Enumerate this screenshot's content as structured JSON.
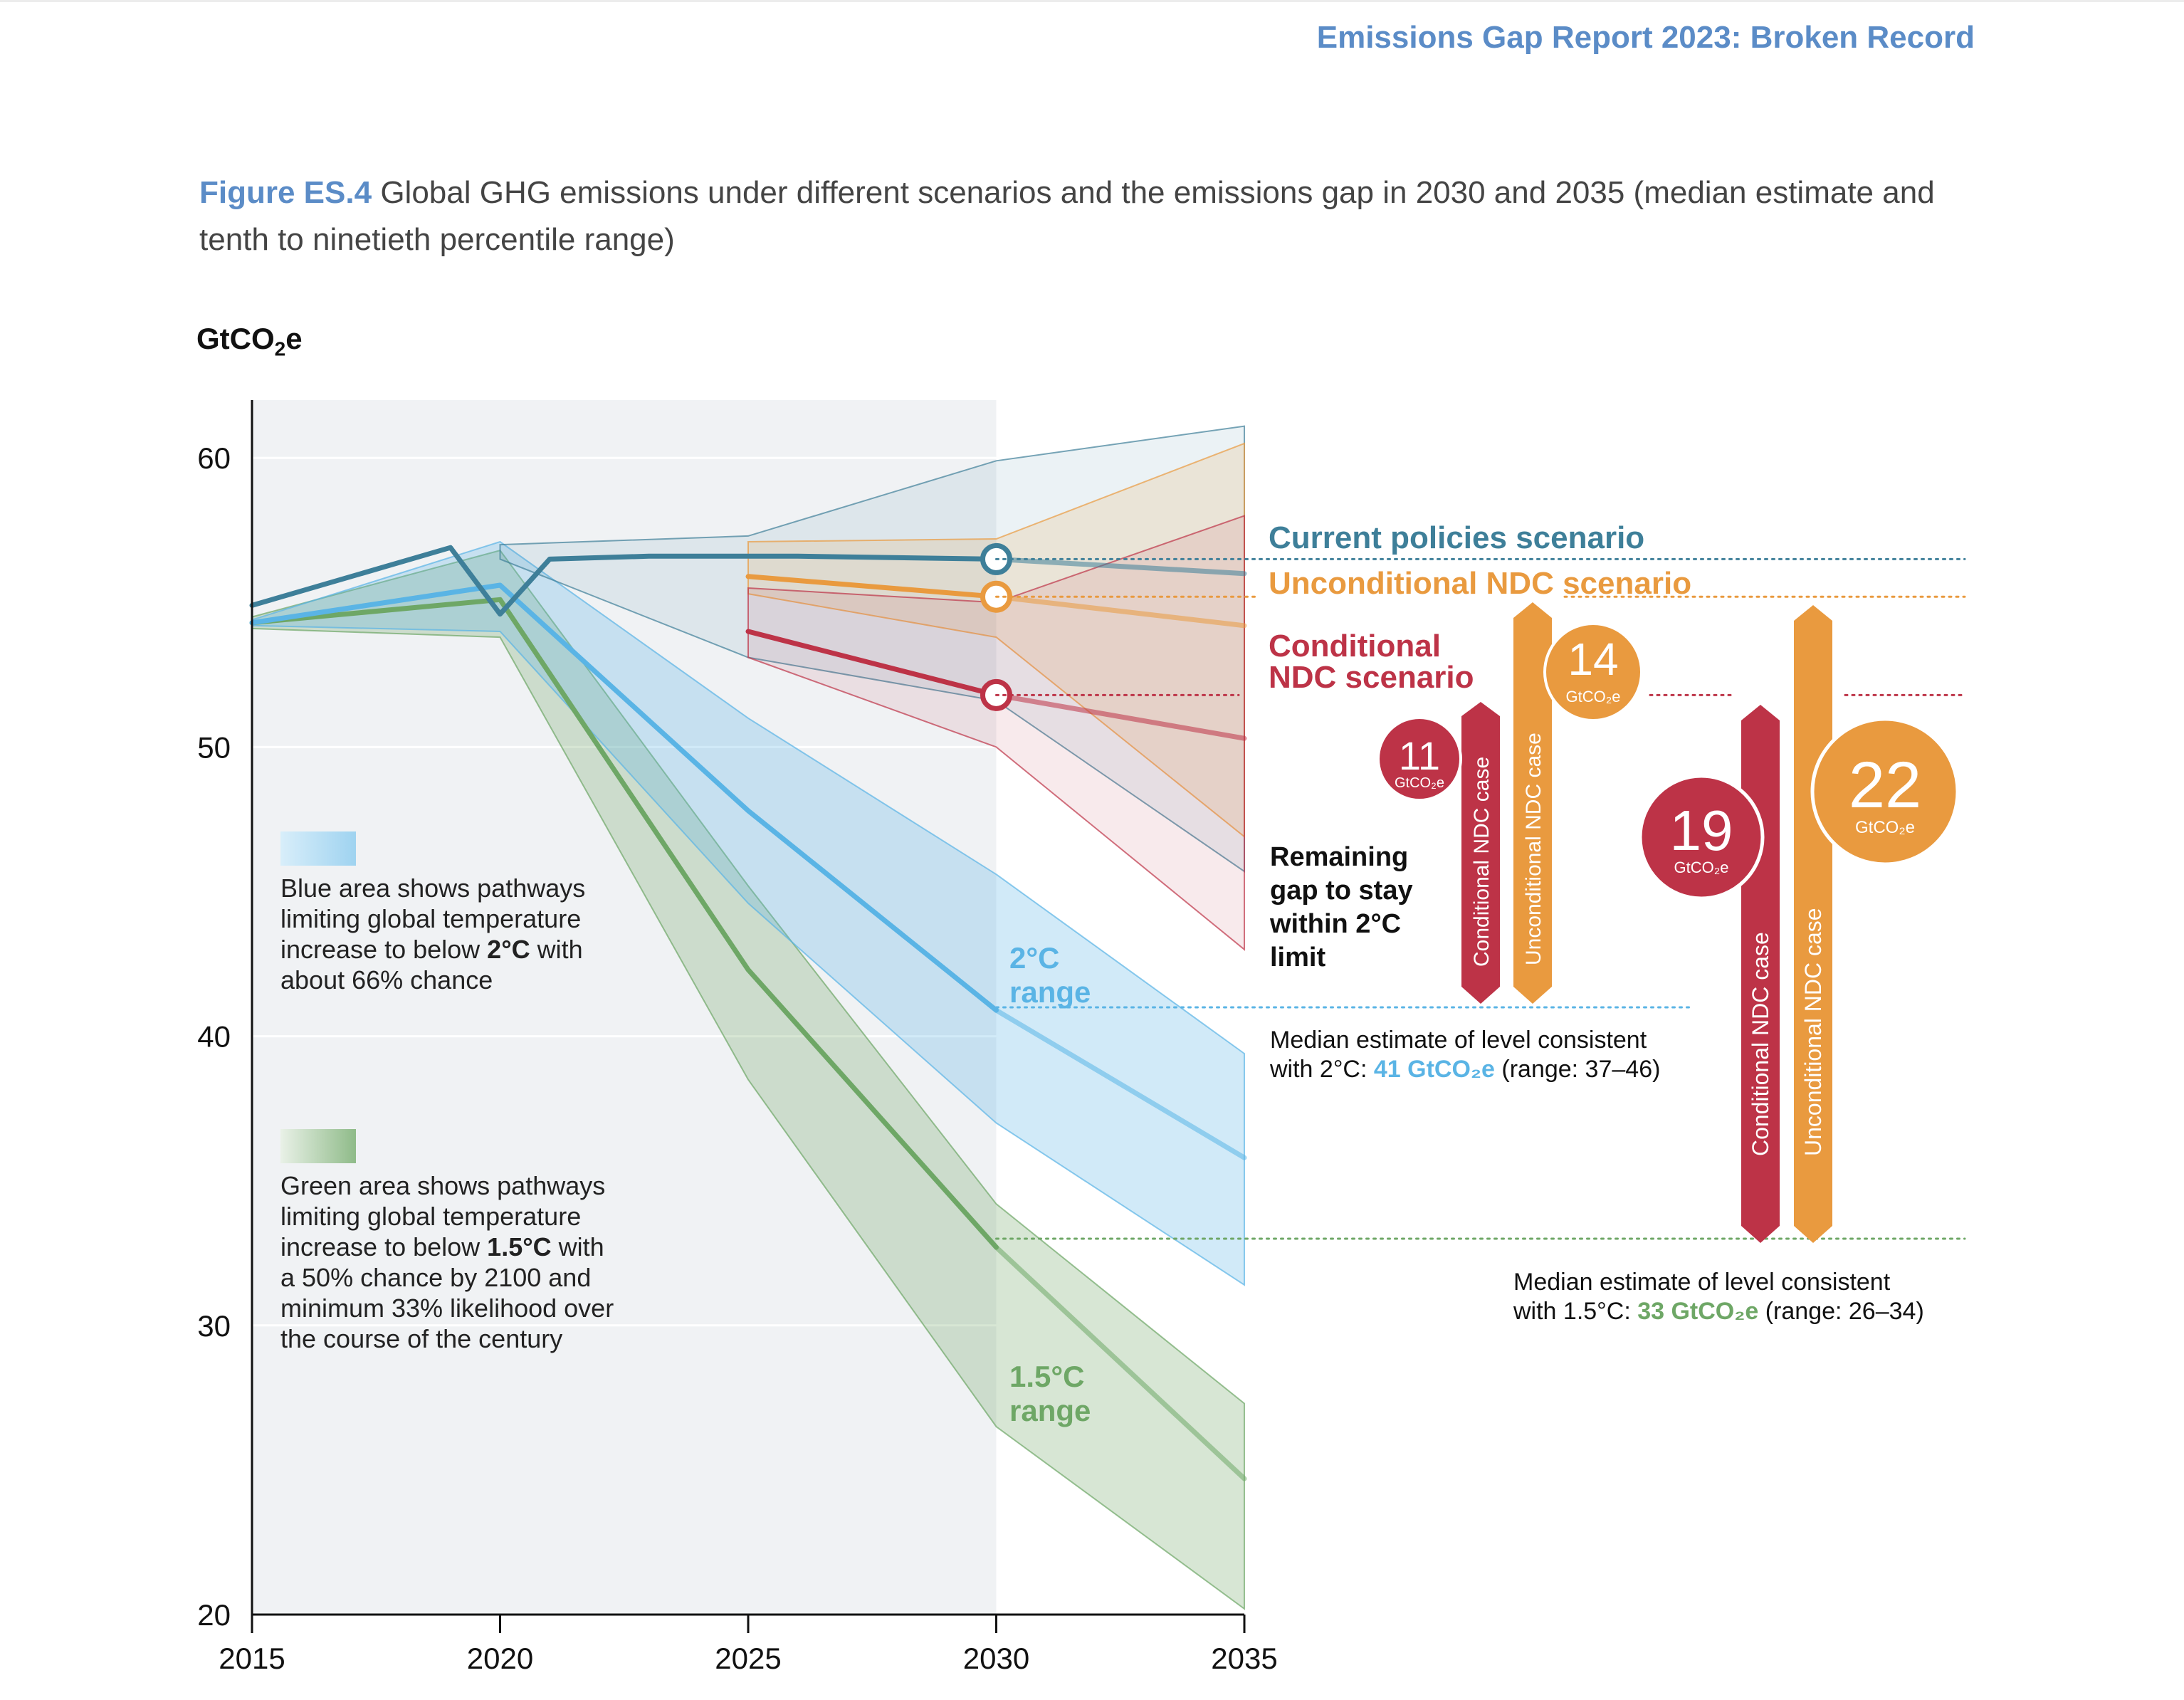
{
  "header": {
    "report_title": "Emissions Gap Report 2023: Broken Record"
  },
  "caption": {
    "figure_label": "Figure ES.4",
    "text": "Global GHG emissions under different scenarios and the emissions gap in 2030 and 2035 (median estimate and tenth to ninetieth percentile range)"
  },
  "chart_data": {
    "type": "line",
    "ylabel": "GtCO2e",
    "xlim": [
      2015,
      2035
    ],
    "ylim": [
      20,
      62
    ],
    "x_ticks": [
      2015,
      2020,
      2025,
      2030,
      2035
    ],
    "y_ticks": [
      20,
      30,
      40,
      50,
      60
    ],
    "grid": "horizontal",
    "historical_shading_until": 2030,
    "colors": {
      "current_policies": "#3e7f99",
      "unconditional_ndc": "#e99a3f",
      "conditional_ndc": "#bd3347",
      "two_c": "#5ab4e5",
      "one_five_c": "#6ea766"
    },
    "series": [
      {
        "name": "Current policies scenario",
        "x": [
          2015,
          2019,
          2020,
          2021,
          2023,
          2026,
          2030,
          2035
        ],
        "median": [
          54.9,
          56.9,
          54.6,
          56.5,
          56.6,
          56.6,
          56.5,
          56.0
        ],
        "band_x": [
          2020,
          2025,
          2030,
          2035
        ],
        "band_high": [
          57.0,
          57.3,
          59.9,
          61.1
        ],
        "band_low": [
          56.5,
          53.1,
          51.6,
          45.7
        ]
      },
      {
        "name": "Unconditional NDC scenario",
        "x": [
          2025,
          2030,
          2035
        ],
        "median": [
          55.9,
          55.2,
          54.2
        ],
        "band_high": [
          57.1,
          57.2,
          60.5
        ],
        "band_low": [
          55.3,
          53.8,
          46.9
        ]
      },
      {
        "name": "Conditional NDC scenario",
        "x": [
          2025,
          2030,
          2035
        ],
        "median": [
          54.0,
          51.8,
          50.3
        ],
        "band_high": [
          55.5,
          55.0,
          58.0
        ],
        "band_low": [
          53.1,
          50.0,
          43.0
        ]
      },
      {
        "name": "2°C range",
        "x": [
          2015,
          2020,
          2025,
          2030,
          2035
        ],
        "median": [
          54.3,
          55.6,
          47.8,
          40.9,
          35.8
        ],
        "band_high": [
          54.4,
          57.1,
          51.0,
          45.6,
          39.4
        ],
        "band_low": [
          54.2,
          54.0,
          44.6,
          37.0,
          31.4
        ]
      },
      {
        "name": "1.5°C range",
        "x": [
          2015,
          2020,
          2025,
          2030,
          2035
        ],
        "median": [
          54.3,
          55.1,
          42.3,
          32.7,
          24.7
        ],
        "band_high": [
          54.5,
          56.8,
          45.2,
          34.2,
          27.3
        ],
        "band_low": [
          54.1,
          53.8,
          38.5,
          26.5,
          20.2
        ]
      }
    ],
    "markers_2030": [
      {
        "series": "Current policies scenario",
        "y": 56.5
      },
      {
        "series": "Unconditional NDC scenario",
        "y": 55.2
      },
      {
        "series": "Conditional NDC scenario",
        "y": 51.8
      }
    ],
    "gaps": [
      {
        "label": "Conditional NDC case",
        "target": "2°C",
        "value": "11",
        "unit": "GtCO₂e"
      },
      {
        "label": "Unconditional NDC case",
        "target": "2°C",
        "value": "14",
        "unit": "GtCO₂e"
      },
      {
        "label": "Conditional NDC case",
        "target": "1.5°C",
        "value": "19",
        "unit": "GtCO₂e"
      },
      {
        "label": "Unconditional NDC case",
        "target": "1.5°C",
        "value": "22",
        "unit": "GtCO₂e"
      }
    ],
    "reference_levels": [
      {
        "target": "2°C",
        "y": 41,
        "range": "37–46"
      },
      {
        "target": "1.5°C",
        "y": 33,
        "range": "26–34"
      }
    ]
  },
  "labels": {
    "current_policies": "Current policies scenario",
    "unconditional_ndc": "Unconditional NDC scenario",
    "conditional_ndc_line1": "Conditional",
    "conditional_ndc_line2": "NDC scenario",
    "two_c_range_line1": "2°C",
    "two_c_range_line2": "range",
    "one_five_c_range_line1": "1.5°C",
    "one_five_c_range_line2": "range",
    "remaining_gap": [
      "Remaining",
      "gap to stay",
      "within 2°C",
      "limit"
    ],
    "gap_bar_conditional": "Conditional NDC case",
    "gap_bar_unconditional": "Unconditional NDC case",
    "gap_unit": "GtCO₂e"
  },
  "legend": {
    "blue": {
      "lines": [
        "Blue area shows pathways",
        "limiting global temperature"
      ],
      "line3_prefix": "increase to below ",
      "line3_bold": "2°C",
      "line3_suffix": " with",
      "line4": "about 66% chance"
    },
    "green": {
      "lines": [
        "Green area shows pathways",
        "limiting global temperature"
      ],
      "line3_prefix": "increase to below ",
      "line3_bold": "1.5°C",
      "line3_suffix": " with",
      "line4": "a 50% chance by 2100 and",
      "line5": "minimum 33% likelihood over",
      "line6": "the course of the century"
    }
  },
  "notes": {
    "two_c": {
      "line1": "Median estimate of level consistent",
      "prefix": "with 2°C: ",
      "value": "41 GtCO₂e",
      "suffix": " (range: 37–46)"
    },
    "one_five_c": {
      "line1": "Median estimate of level consistent",
      "prefix": "with 1.5°C: ",
      "value": "33 GtCO₂e",
      "suffix": " (range: 26–34)"
    }
  }
}
